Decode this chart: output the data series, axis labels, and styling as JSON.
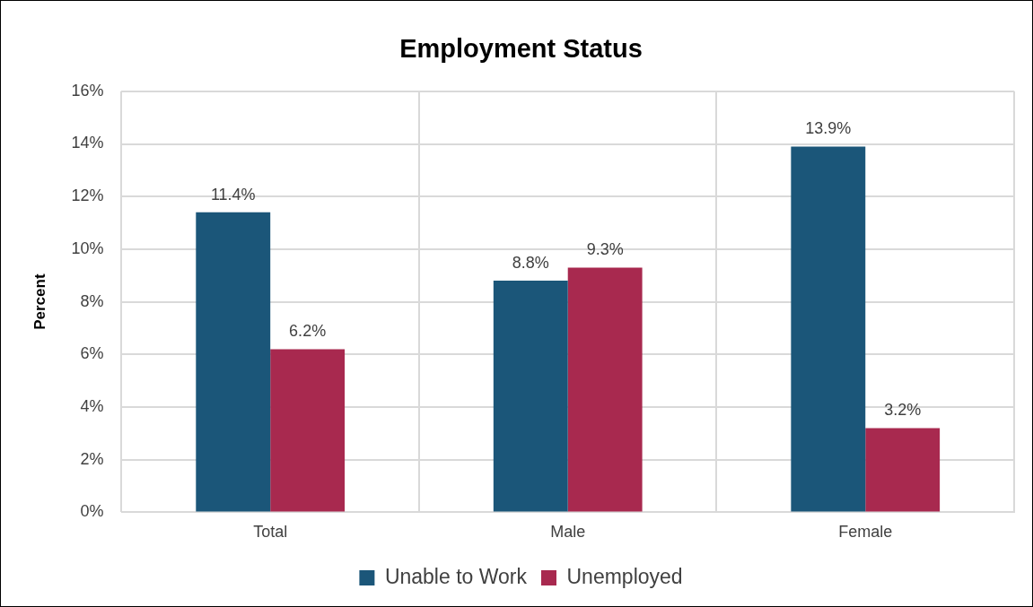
{
  "chart_data": {
    "type": "bar",
    "title": "Employment Status",
    "ylabel": "Percent",
    "categories": [
      "Total",
      "Male",
      "Female"
    ],
    "series": [
      {
        "name": "Unable to Work",
        "color": "#1b5679",
        "values": [
          11.4,
          8.8,
          13.9
        ],
        "value_labels": [
          "11.4%",
          "8.8%",
          "13.9%"
        ]
      },
      {
        "name": "Unemployed",
        "color": "#a8294f",
        "values": [
          6.2,
          9.3,
          3.2
        ],
        "value_labels": [
          "6.2%",
          "9.3%",
          "3.2%"
        ]
      }
    ],
    "ylim": [
      0,
      16
    ],
    "yticks": [
      {
        "value": 0,
        "label": "0%"
      },
      {
        "value": 2,
        "label": "2%"
      },
      {
        "value": 4,
        "label": "4%"
      },
      {
        "value": 6,
        "label": "6%"
      },
      {
        "value": 8,
        "label": "8%"
      },
      {
        "value": 10,
        "label": "10%"
      },
      {
        "value": 12,
        "label": "12%"
      },
      {
        "value": 14,
        "label": "14%"
      },
      {
        "value": 16,
        "label": "16%"
      }
    ],
    "grid": true,
    "legend": "bottom"
  }
}
